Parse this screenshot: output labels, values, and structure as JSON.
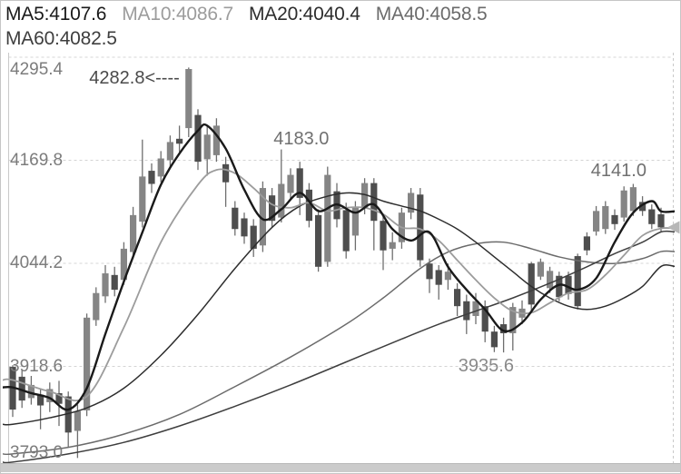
{
  "chart_data": {
    "type": "candlestick",
    "title": "",
    "legend_position": "top-left",
    "grid": "dashed-horizontal",
    "price_range": {
      "max": 4295.4,
      "min": 3793.0
    },
    "y_axis": [
      {
        "text": "4295.4",
        "price": 4295.4
      },
      {
        "text": "4169.8",
        "price": 4169.8
      },
      {
        "text": "4044.2",
        "price": 4044.2
      },
      {
        "text": "3918.6",
        "price": 3918.6
      },
      {
        "text": "3793.0",
        "price": 3793.0
      }
    ],
    "ma_series": [
      {
        "name": "MA5",
        "label": "MA5:4107.6",
        "value": 4107.6,
        "color": "#1a1a1a",
        "width": 2.4,
        "points": [
          [
            0,
            3893
          ],
          [
            2,
            3886
          ],
          [
            4,
            3880
          ],
          [
            6,
            3866
          ],
          [
            8,
            3892
          ],
          [
            10,
            3958
          ],
          [
            12,
            4022
          ],
          [
            14,
            4082
          ],
          [
            16,
            4140
          ],
          [
            18,
            4178
          ],
          [
            20,
            4206
          ],
          [
            21,
            4212
          ],
          [
            23,
            4184
          ],
          [
            25,
            4134
          ],
          [
            27,
            4098
          ],
          [
            29,
            4110
          ],
          [
            31,
            4130
          ],
          [
            33,
            4108
          ],
          [
            35,
            4116
          ],
          [
            37,
            4106
          ],
          [
            39,
            4116
          ],
          [
            41,
            4086
          ],
          [
            43,
            4072
          ],
          [
            45,
            4082
          ],
          [
            47,
            4040
          ],
          [
            49,
            4012
          ],
          [
            51,
            3988
          ],
          [
            53,
            3962
          ],
          [
            55,
            3972
          ],
          [
            57,
            4000
          ],
          [
            59,
            4018
          ],
          [
            61,
            4012
          ],
          [
            63,
            4026
          ],
          [
            65,
            4070
          ],
          [
            67,
            4106
          ],
          [
            69,
            4120
          ],
          [
            70,
            4107.6
          ]
        ]
      },
      {
        "name": "MA10",
        "label": "MA10:4086.7",
        "value": 4086.7,
        "color": "#9c9c9c",
        "width": 1.8,
        "points": [
          [
            0,
            3902
          ],
          [
            4,
            3888
          ],
          [
            8,
            3882
          ],
          [
            12,
            3966
          ],
          [
            16,
            4070
          ],
          [
            20,
            4140
          ],
          [
            22,
            4158
          ],
          [
            24,
            4154
          ],
          [
            26,
            4136
          ],
          [
            28,
            4116
          ],
          [
            30,
            4112
          ],
          [
            32,
            4118
          ],
          [
            34,
            4108
          ],
          [
            36,
            4112
          ],
          [
            38,
            4112
          ],
          [
            40,
            4104
          ],
          [
            42,
            4088
          ],
          [
            44,
            4086
          ],
          [
            46,
            4072
          ],
          [
            48,
            4048
          ],
          [
            50,
            4024
          ],
          [
            52,
            4002
          ],
          [
            54,
            3986
          ],
          [
            56,
            3984
          ],
          [
            58,
            3996
          ],
          [
            60,
            4008
          ],
          [
            62,
            4012
          ],
          [
            64,
            4030
          ],
          [
            66,
            4054
          ],
          [
            68,
            4078
          ],
          [
            70,
            4086.7
          ]
        ]
      },
      {
        "name": "MA20",
        "label": "MA20:4040.4",
        "value": 4040.4,
        "color": "#2d2d2d",
        "width": 1.5,
        "points": [
          [
            0,
            3848
          ],
          [
            4,
            3856
          ],
          [
            8,
            3868
          ],
          [
            12,
            3892
          ],
          [
            16,
            3932
          ],
          [
            20,
            3982
          ],
          [
            24,
            4038
          ],
          [
            28,
            4088
          ],
          [
            31,
            4114
          ],
          [
            34,
            4126
          ],
          [
            36,
            4130
          ],
          [
            38,
            4128
          ],
          [
            40,
            4120
          ],
          [
            42,
            4114
          ],
          [
            44,
            4108
          ],
          [
            46,
            4098
          ],
          [
            48,
            4086
          ],
          [
            50,
            4070
          ],
          [
            52,
            4052
          ],
          [
            54,
            4034
          ],
          [
            56,
            4016
          ],
          [
            58,
            4002
          ],
          [
            60,
            3992
          ],
          [
            62,
            3988
          ],
          [
            64,
            3992
          ],
          [
            66,
            4002
          ],
          [
            68,
            4016
          ],
          [
            70,
            4040.4
          ]
        ]
      },
      {
        "name": "MA40",
        "label": "MA40:4058.5",
        "value": 4058.5,
        "color": "#6b6b6b",
        "width": 1.5,
        "points": [
          [
            0,
            3812
          ],
          [
            6,
            3820
          ],
          [
            12,
            3836
          ],
          [
            18,
            3860
          ],
          [
            24,
            3894
          ],
          [
            30,
            3930
          ],
          [
            36,
            3970
          ],
          [
            40,
            4002
          ],
          [
            44,
            4038
          ],
          [
            47,
            4058
          ],
          [
            50,
            4068
          ],
          [
            53,
            4070
          ],
          [
            56,
            4062
          ],
          [
            59,
            4052
          ],
          [
            62,
            4046
          ],
          [
            65,
            4044
          ],
          [
            68,
            4050
          ],
          [
            70,
            4058.5
          ]
        ]
      },
      {
        "name": "MA60",
        "label": "MA60:4082.5",
        "value": 4082.5,
        "color": "#3e3e3e",
        "width": 1.5,
        "points": [
          [
            0,
            3802
          ],
          [
            6,
            3812
          ],
          [
            12,
            3826
          ],
          [
            18,
            3846
          ],
          [
            24,
            3870
          ],
          [
            30,
            3896
          ],
          [
            36,
            3924
          ],
          [
            42,
            3952
          ],
          [
            46,
            3970
          ],
          [
            50,
            3986
          ],
          [
            54,
            4002
          ],
          [
            58,
            4020
          ],
          [
            62,
            4040
          ],
          [
            65,
            4056
          ],
          [
            68,
            4070
          ],
          [
            70,
            4082.5
          ]
        ]
      }
    ],
    "annotations": [
      {
        "text": "4282.8<----",
        "anchor_index": 19,
        "price": 4282.8,
        "color": "#4a4a4a"
      },
      {
        "text": "4183.0",
        "anchor_index": 29,
        "price": 4183.0,
        "color": "#707070"
      },
      {
        "text": "4141.0",
        "anchor_index": 67,
        "price": 4141.0,
        "color": "#707070"
      },
      {
        "text": "3935.6",
        "anchor_index": 52,
        "price": 3935.6,
        "color": "#8a8a8a"
      }
    ],
    "last_price_marker": {
      "shape": "left-triangle",
      "color": "#b7b7b7"
    },
    "colors": {
      "up_body": "#858585",
      "down_body": "#4e4e4e",
      "wick": "#6e6e6e",
      "grid": "#d4d4d4",
      "axis": "#c9c9c9"
    },
    "candles_columns": [
      "open",
      "close",
      "high",
      "low"
    ],
    "candles": [
      [
        3918,
        3866,
        3920,
        3857
      ],
      [
        3906,
        3877,
        3914,
        3868
      ],
      [
        3880,
        3896,
        3907,
        3872
      ],
      [
        3884,
        3871,
        3892,
        3842
      ],
      [
        3875,
        3891,
        3899,
        3863
      ],
      [
        3886,
        3873,
        3901,
        3846
      ],
      [
        3882,
        3838,
        3888,
        3820
      ],
      [
        3840,
        3864,
        3872,
        3807
      ],
      [
        3865,
        3978,
        3983,
        3858
      ],
      [
        3975,
        4008,
        4015,
        3968
      ],
      [
        4004,
        4032,
        4042,
        3996
      ],
      [
        4030,
        4012,
        4040,
        4004
      ],
      [
        4024,
        4062,
        4070,
        4018
      ],
      [
        4058,
        4103,
        4113,
        4050
      ],
      [
        4095,
        4150,
        4195,
        4088
      ],
      [
        4157,
        4141,
        4166,
        4130
      ],
      [
        4150,
        4172,
        4181,
        4143
      ],
      [
        4170,
        4192,
        4200,
        4160
      ],
      [
        4196,
        4190,
        4212,
        4180
      ],
      [
        4209,
        4281,
        4282.8,
        4198
      ],
      [
        4225,
        4168,
        4232,
        4158
      ],
      [
        4171,
        4201,
        4212,
        4151
      ],
      [
        4176,
        4212,
        4221,
        4168
      ],
      [
        4165,
        4143,
        4174,
        4113
      ],
      [
        4112,
        4086,
        4120,
        4078
      ],
      [
        4099,
        4077,
        4106,
        4068
      ],
      [
        4090,
        4062,
        4098,
        4052
      ],
      [
        4066,
        4136,
        4144,
        4058
      ],
      [
        4127,
        4096,
        4136,
        4088
      ],
      [
        4100,
        4141,
        4183,
        4094
      ],
      [
        4130,
        4152,
        4160,
        4122
      ],
      [
        4160,
        4124,
        4168,
        4103
      ],
      [
        4134,
        4096,
        4142,
        4088
      ],
      [
        4103,
        4040,
        4110,
        4034
      ],
      [
        4046,
        4152,
        4162,
        4040
      ],
      [
        4132,
        4098,
        4142,
        4088
      ],
      [
        4109,
        4059,
        4118,
        4050
      ],
      [
        4078,
        4112,
        4120,
        4060
      ],
      [
        4112,
        4142,
        4148,
        4104
      ],
      [
        4142,
        4096,
        4148,
        4060
      ],
      [
        4096,
        4060,
        4102,
        4036
      ],
      [
        4062,
        4070,
        4082,
        4048
      ],
      [
        4070,
        4106,
        4112,
        4062
      ],
      [
        4106,
        4130,
        4136,
        4098
      ],
      [
        4128,
        4048,
        4136,
        4040
      ],
      [
        4044,
        4025,
        4050,
        4008
      ],
      [
        4036,
        4018,
        4042,
        4000
      ],
      [
        4024,
        4034,
        4044,
        4012
      ],
      [
        4013,
        3992,
        4020,
        3980
      ],
      [
        3998,
        3975,
        4006,
        3958
      ],
      [
        3980,
        3998,
        4008,
        3970
      ],
      [
        3992,
        3961,
        3999,
        3948
      ],
      [
        3961,
        3942,
        3968,
        3936
      ],
      [
        3970,
        3959,
        3978,
        3935.6
      ],
      [
        3959,
        3991,
        3996,
        3938
      ],
      [
        3978,
        3989,
        3999,
        3970
      ],
      [
        4044,
        3994,
        4046,
        3985
      ],
      [
        4028,
        4046,
        4050,
        4024
      ],
      [
        4014,
        4035,
        4040,
        4008
      ],
      [
        4029,
        4003,
        4034,
        3998
      ],
      [
        4029,
        4007,
        4034,
        4000
      ],
      [
        4053,
        3992,
        4056,
        3988
      ],
      [
        4077,
        4060,
        4082,
        4054
      ],
      [
        4083,
        4108,
        4114,
        4078
      ],
      [
        4086,
        4114,
        4120,
        4080
      ],
      [
        4103,
        4092,
        4110,
        4085
      ],
      [
        4100,
        4133,
        4138,
        4095
      ],
      [
        4108,
        4137,
        4141,
        4102
      ],
      [
        4119,
        4108,
        4126,
        4102
      ],
      [
        4110,
        4092,
        4116,
        4086
      ],
      [
        4104,
        4088,
        4112,
        4082
      ]
    ]
  }
}
